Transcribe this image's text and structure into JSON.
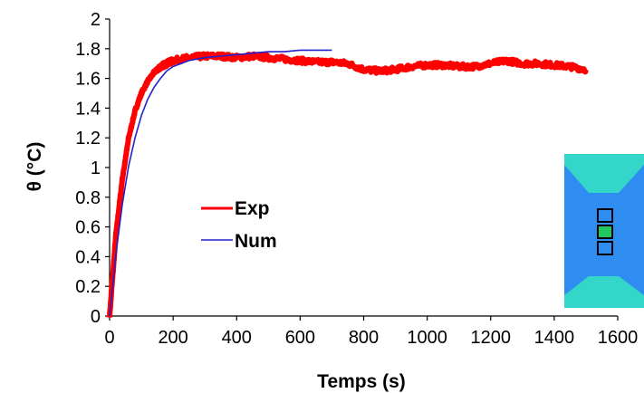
{
  "chart_data": {
    "type": "line",
    "title": "",
    "xlabel": "Temps (s)",
    "ylabel": "θ (°C)",
    "xlim": [
      0,
      1600
    ],
    "ylim": [
      0,
      2
    ],
    "x_ticks": [
      "0",
      "200",
      "400",
      "600",
      "800",
      "1000",
      "1200",
      "1400",
      "1600"
    ],
    "y_ticks": [
      "0",
      "0.2",
      "0.4",
      "0.6",
      "0.8",
      "1",
      "1.2",
      "1.4",
      "1.6",
      "1.8",
      "2"
    ],
    "grid": false,
    "legend_position": "center-left",
    "series": [
      {
        "name": "Exp",
        "color": "#ff0000",
        "style": "noisy-band",
        "x": [
          0,
          20,
          40,
          60,
          80,
          100,
          120,
          140,
          160,
          180,
          200,
          250,
          300,
          350,
          400,
          450,
          500,
          550,
          600,
          650,
          700,
          750,
          800,
          850,
          900,
          950,
          1000,
          1050,
          1100,
          1150,
          1200,
          1250,
          1300,
          1350,
          1400,
          1450,
          1500
        ],
        "y": [
          0,
          0.55,
          0.92,
          1.2,
          1.38,
          1.5,
          1.58,
          1.64,
          1.68,
          1.7,
          1.72,
          1.74,
          1.75,
          1.75,
          1.74,
          1.75,
          1.74,
          1.73,
          1.72,
          1.71,
          1.71,
          1.7,
          1.66,
          1.65,
          1.66,
          1.68,
          1.69,
          1.69,
          1.68,
          1.68,
          1.7,
          1.72,
          1.7,
          1.7,
          1.69,
          1.68,
          1.66
        ]
      },
      {
        "name": "Num",
        "color": "#2222cc",
        "style": "smooth",
        "x": [
          0,
          20,
          40,
          60,
          80,
          100,
          120,
          140,
          160,
          180,
          200,
          250,
          300,
          350,
          400,
          450,
          500,
          550,
          600,
          650,
          700
        ],
        "y": [
          0,
          0.42,
          0.75,
          1.01,
          1.2,
          1.35,
          1.46,
          1.54,
          1.6,
          1.65,
          1.68,
          1.72,
          1.74,
          1.75,
          1.76,
          1.77,
          1.78,
          1.78,
          1.79,
          1.79,
          1.79
        ]
      }
    ],
    "inset": {
      "background": "#2f8cf0",
      "top_color": "#34d6c9",
      "bottom_color": "#34d6c9",
      "highlight_color": "#22c55e",
      "markers": 3
    }
  }
}
